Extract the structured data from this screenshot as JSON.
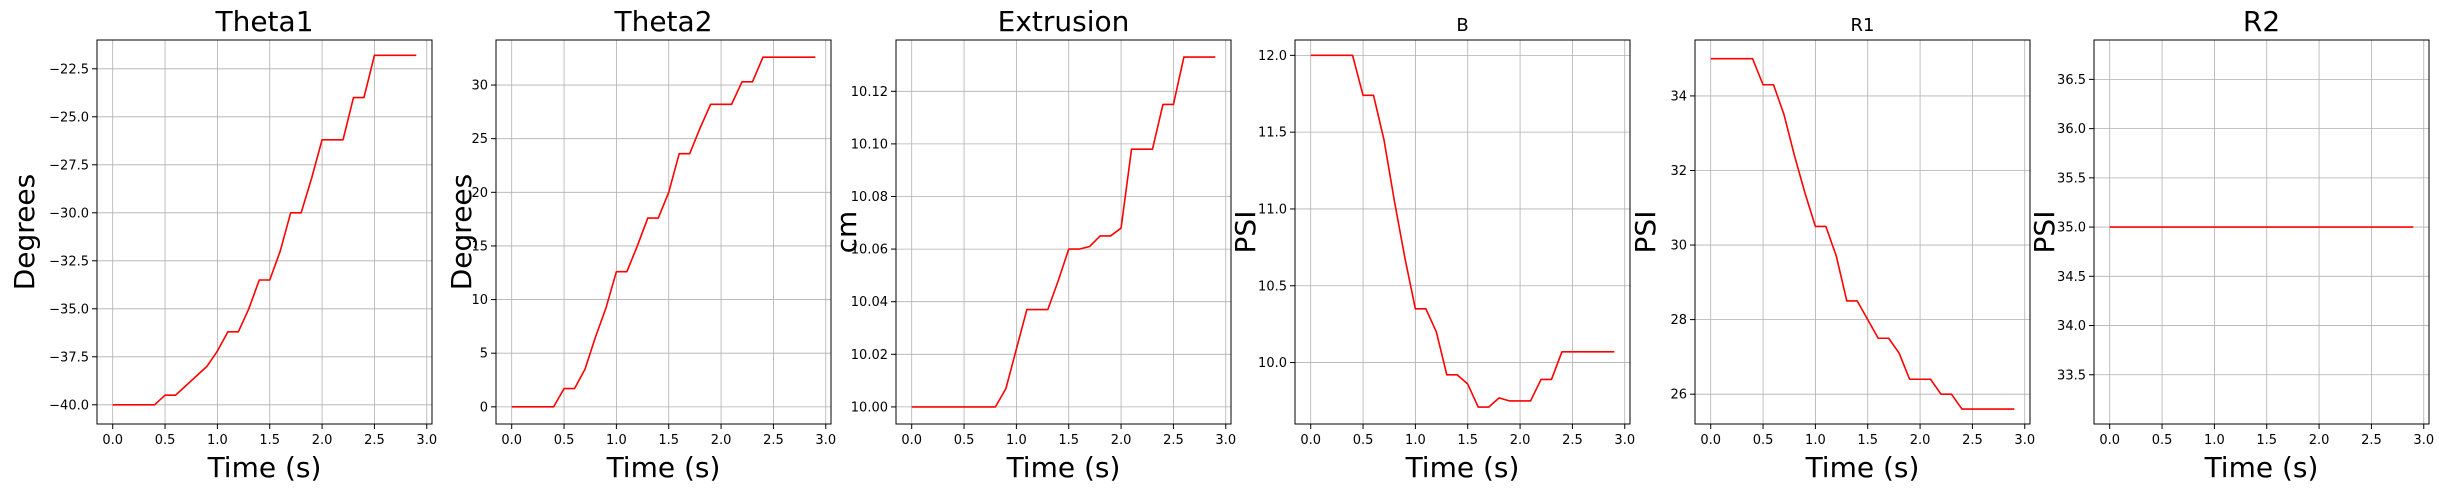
{
  "chart_data": [
    {
      "type": "line",
      "title": "Theta1",
      "title_size": "large",
      "xlabel": "Time (s)",
      "ylabel": "Degrees",
      "xlim": [
        -0.15,
        3.05
      ],
      "ylim": [
        -41.0,
        -21.0
      ],
      "xticks": [
        0.0,
        0.5,
        1.0,
        1.5,
        2.0,
        2.5,
        3.0
      ],
      "xtick_labels": [
        "0.0",
        "0.5",
        "1.0",
        "1.5",
        "2.0",
        "2.5",
        "3.0"
      ],
      "yticks": [
        -40.0,
        -37.5,
        -35.0,
        -32.5,
        -30.0,
        -27.5,
        -25.0,
        -22.5
      ],
      "ytick_labels": [
        "−40.0",
        "−37.5",
        "−35.0",
        "−32.5",
        "−30.0",
        "−27.5",
        "−25.0",
        "−22.5"
      ],
      "grid": true,
      "series": [
        {
          "color": "#ff0000",
          "x": [
            0.0,
            0.1,
            0.2,
            0.3,
            0.4,
            0.5,
            0.6,
            0.7,
            0.8,
            0.9,
            1.0,
            1.1,
            1.2,
            1.3,
            1.4,
            1.5,
            1.6,
            1.7,
            1.8,
            1.9,
            2.0,
            2.1,
            2.2,
            2.3,
            2.4,
            2.5,
            2.6,
            2.7,
            2.8,
            2.9
          ],
          "y": [
            -40.0,
            -40.0,
            -40.0,
            -40.0,
            -40.0,
            -39.5,
            -39.5,
            -39.0,
            -38.5,
            -38.0,
            -37.2,
            -36.2,
            -36.2,
            -35.0,
            -33.5,
            -33.5,
            -32.0,
            -30.0,
            -30.0,
            -28.2,
            -26.2,
            -26.2,
            -26.2,
            -24.0,
            -24.0,
            -21.8,
            -21.8,
            -21.8,
            -21.8,
            -21.8
          ]
        }
      ]
    },
    {
      "type": "line",
      "title": "Theta2",
      "title_size": "large",
      "xlabel": "Time (s)",
      "ylabel": "Degrees",
      "xlim": [
        -0.15,
        3.05
      ],
      "ylim": [
        -1.6,
        34.2
      ],
      "xticks": [
        0.0,
        0.5,
        1.0,
        1.5,
        2.0,
        2.5,
        3.0
      ],
      "xtick_labels": [
        "0.0",
        "0.5",
        "1.0",
        "1.5",
        "2.0",
        "2.5",
        "3.0"
      ],
      "yticks": [
        0,
        5,
        10,
        15,
        20,
        25,
        30
      ],
      "ytick_labels": [
        "0",
        "5",
        "10",
        "15",
        "20",
        "25",
        "30"
      ],
      "grid": true,
      "series": [
        {
          "color": "#ff0000",
          "x": [
            0.0,
            0.1,
            0.2,
            0.3,
            0.4,
            0.5,
            0.6,
            0.7,
            0.8,
            0.9,
            1.0,
            1.1,
            1.2,
            1.3,
            1.4,
            1.5,
            1.6,
            1.7,
            1.8,
            1.9,
            2.0,
            2.1,
            2.2,
            2.3,
            2.4,
            2.5,
            2.6,
            2.7,
            2.8,
            2.9
          ],
          "y": [
            0.0,
            0.0,
            0.0,
            0.0,
            0.0,
            1.7,
            1.7,
            3.5,
            6.5,
            9.2,
            12.6,
            12.6,
            15.0,
            17.6,
            17.6,
            20.0,
            23.6,
            23.6,
            26.0,
            28.2,
            28.2,
            28.2,
            30.3,
            30.3,
            32.6,
            32.6,
            32.6,
            32.6,
            32.6,
            32.6
          ]
        }
      ]
    },
    {
      "type": "line",
      "title": "Extrusion",
      "title_size": "large",
      "xlabel": "Time (s)",
      "ylabel": "cm",
      "xlim": [
        -0.15,
        3.05
      ],
      "ylim": [
        9.9935,
        10.1395
      ],
      "xticks": [
        0.0,
        0.5,
        1.0,
        1.5,
        2.0,
        2.5,
        3.0
      ],
      "xtick_labels": [
        "0.0",
        "0.5",
        "1.0",
        "1.5",
        "2.0",
        "2.5",
        "3.0"
      ],
      "yticks": [
        10.0,
        10.02,
        10.04,
        10.06,
        10.08,
        10.1,
        10.12
      ],
      "ytick_labels": [
        "10.00",
        "10.02",
        "10.04",
        "10.06",
        "10.08",
        "10.10",
        "10.12"
      ],
      "grid": true,
      "series": [
        {
          "color": "#ff0000",
          "x": [
            0.0,
            0.1,
            0.2,
            0.3,
            0.4,
            0.5,
            0.6,
            0.7,
            0.8,
            0.9,
            1.0,
            1.1,
            1.2,
            1.3,
            1.4,
            1.5,
            1.6,
            1.7,
            1.8,
            1.9,
            2.0,
            2.1,
            2.2,
            2.3,
            2.4,
            2.5,
            2.6,
            2.7,
            2.8,
            2.9
          ],
          "y": [
            10.0,
            10.0,
            10.0,
            10.0,
            10.0,
            10.0,
            10.0,
            10.0,
            10.0,
            10.007,
            10.022,
            10.037,
            10.037,
            10.037,
            10.048,
            10.06,
            10.06,
            10.061,
            10.065,
            10.065,
            10.068,
            10.098,
            10.098,
            10.098,
            10.115,
            10.115,
            10.133,
            10.133,
            10.133,
            10.133
          ]
        }
      ]
    },
    {
      "type": "line",
      "title": "B",
      "title_size": "small",
      "xlabel": "Time (s)",
      "ylabel": "PSI",
      "xlim": [
        -0.15,
        3.05
      ],
      "ylim": [
        9.6,
        12.1
      ],
      "xticks": [
        0.0,
        0.5,
        1.0,
        1.5,
        2.0,
        2.5,
        3.0
      ],
      "xtick_labels": [
        "0.0",
        "0.5",
        "1.0",
        "1.5",
        "2.0",
        "2.5",
        "3.0"
      ],
      "yticks": [
        10.0,
        10.5,
        11.0,
        11.5,
        12.0
      ],
      "ytick_labels": [
        "10.0",
        "10.5",
        "11.0",
        "11.5",
        "12.0"
      ],
      "grid": true,
      "series": [
        {
          "color": "#ff0000",
          "x": [
            0.0,
            0.1,
            0.2,
            0.3,
            0.4,
            0.5,
            0.6,
            0.7,
            0.8,
            0.9,
            1.0,
            1.1,
            1.2,
            1.3,
            1.4,
            1.5,
            1.6,
            1.7,
            1.8,
            1.9,
            2.0,
            2.1,
            2.2,
            2.3,
            2.4,
            2.5,
            2.6,
            2.7,
            2.8,
            2.9
          ],
          "y": [
            12.0,
            12.0,
            12.0,
            12.0,
            12.0,
            11.74,
            11.74,
            11.45,
            11.05,
            10.68,
            10.35,
            10.35,
            10.2,
            9.92,
            9.92,
            9.86,
            9.71,
            9.71,
            9.77,
            9.75,
            9.75,
            9.75,
            9.89,
            9.89,
            10.07,
            10.07,
            10.07,
            10.07,
            10.07,
            10.07
          ]
        }
      ]
    },
    {
      "type": "line",
      "title": "R1",
      "title_size": "small",
      "xlabel": "Time (s)",
      "ylabel": "PSI",
      "xlim": [
        -0.15,
        3.05
      ],
      "ylim": [
        25.2,
        35.5
      ],
      "xticks": [
        0.0,
        0.5,
        1.0,
        1.5,
        2.0,
        2.5,
        3.0
      ],
      "xtick_labels": [
        "0.0",
        "0.5",
        "1.0",
        "1.5",
        "2.0",
        "2.5",
        "3.0"
      ],
      "yticks": [
        26,
        28,
        30,
        32,
        34
      ],
      "ytick_labels": [
        "26",
        "28",
        "30",
        "32",
        "34"
      ],
      "grid": true,
      "series": [
        {
          "color": "#ff0000",
          "x": [
            0.0,
            0.1,
            0.2,
            0.3,
            0.4,
            0.5,
            0.6,
            0.7,
            0.8,
            0.9,
            1.0,
            1.1,
            1.2,
            1.3,
            1.4,
            1.5,
            1.6,
            1.7,
            1.8,
            1.9,
            2.0,
            2.1,
            2.2,
            2.3,
            2.4,
            2.5,
            2.6,
            2.7,
            2.8,
            2.9
          ],
          "y": [
            35.0,
            35.0,
            35.0,
            35.0,
            35.0,
            34.3,
            34.3,
            33.5,
            32.4,
            31.4,
            30.5,
            30.5,
            29.7,
            28.5,
            28.5,
            28.0,
            27.5,
            27.5,
            27.1,
            26.4,
            26.4,
            26.4,
            26.0,
            26.0,
            25.6,
            25.6,
            25.6,
            25.6,
            25.6,
            25.6
          ]
        }
      ]
    },
    {
      "type": "line",
      "title": "R2",
      "title_size": "large",
      "xlabel": "Time (s)",
      "ylabel": "PSI",
      "xlim": [
        -0.15,
        3.05
      ],
      "ylim": [
        33.0,
        36.9
      ],
      "xticks": [
        0.0,
        0.5,
        1.0,
        1.5,
        2.0,
        2.5,
        3.0
      ],
      "xtick_labels": [
        "0.0",
        "0.5",
        "1.0",
        "1.5",
        "2.0",
        "2.5",
        "3.0"
      ],
      "yticks": [
        33.5,
        34.0,
        34.5,
        35.0,
        35.5,
        36.0,
        36.5
      ],
      "ytick_labels": [
        "33.5",
        "34.0",
        "34.5",
        "35.0",
        "35.5",
        "36.0",
        "36.5"
      ],
      "grid": true,
      "series": [
        {
          "color": "#ff0000",
          "x": [
            0.0,
            2.9
          ],
          "y": [
            35.0,
            35.0
          ]
        }
      ]
    }
  ]
}
